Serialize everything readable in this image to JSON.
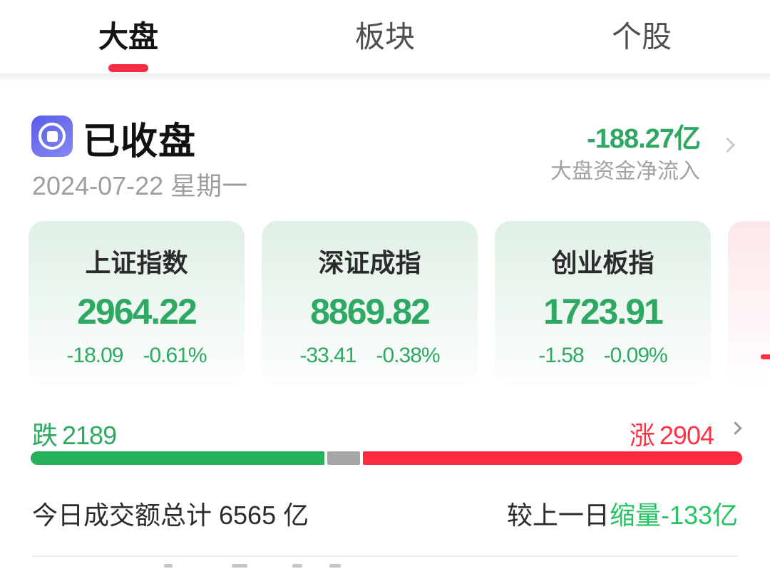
{
  "tabs": [
    {
      "label": "大盘",
      "active": true
    },
    {
      "label": "板块",
      "active": false
    },
    {
      "label": "个股",
      "active": false
    }
  ],
  "market_status": {
    "icon": "stop-record-icon",
    "label": "已收盘",
    "date": "2024-07-22  星期一"
  },
  "net_inflow": {
    "value": "-188.27亿",
    "label": "大盘资金净流入",
    "chevron_icon": "chevron-right-icon"
  },
  "indices": [
    {
      "name": "上证指数",
      "value": "2964.22",
      "change": "-18.09",
      "change_pct": "-0.61%",
      "trend": "down"
    },
    {
      "name": "深证成指",
      "value": "8869.82",
      "change": "-33.41",
      "change_pct": "-0.38%",
      "trend": "down"
    },
    {
      "name": "创业板指",
      "value": "1723.91",
      "change": "-1.58",
      "change_pct": "-0.09%",
      "trend": "down"
    },
    {
      "name": "",
      "value": "",
      "change": "-",
      "change_pct": "",
      "trend": "up",
      "partial": true
    }
  ],
  "breadth": {
    "down_label": "跌",
    "down_count": "2189",
    "up_label": "涨",
    "up_count": "2904",
    "bar": {
      "down_pct": 41.3,
      "flat_pct": 4.6,
      "up_pct": 54.1
    },
    "chevron_icon": "chevron-right-icon"
  },
  "turnover": {
    "today_text": "今日成交额总计 6565 亿",
    "compare_prefix": "较上一日",
    "compare_value": "缩量-133亿"
  },
  "colors": {
    "up_red": "#fb3345",
    "down_green": "#2ea963",
    "bright_green": "#27c263",
    "flat_gray": "#a6a6a6",
    "accent_red": "#fb2d43",
    "status_icon_indigo": "#6366f1"
  }
}
